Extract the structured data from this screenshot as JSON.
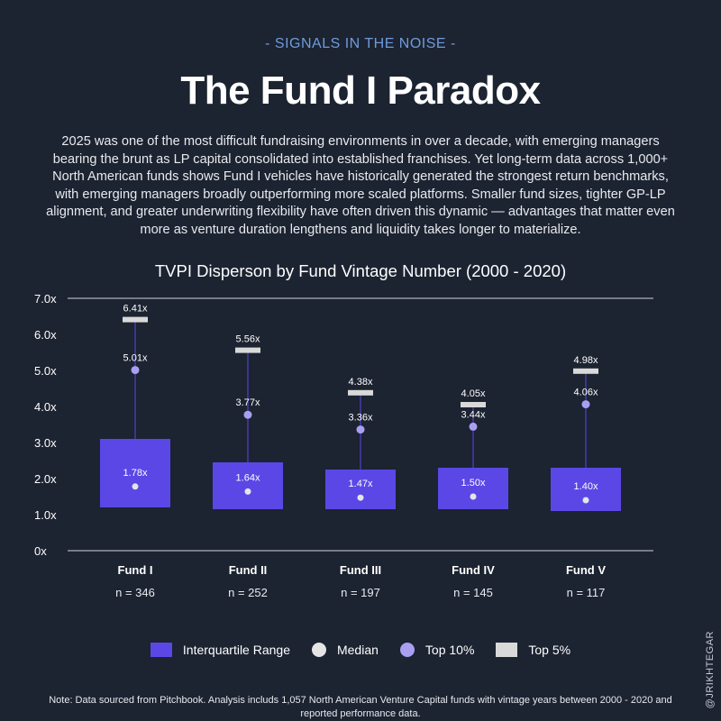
{
  "header": {
    "kicker": "- SIGNALS IN THE NOISE -",
    "title": "The Fund I Paradox",
    "intro": "2025 was one of the most difficult fundraising environments in over a decade, with emerging managers bearing the brunt as LP capital consolidated into established franchises. Yet long-term data across 1,000+ North American funds shows Fund I vehicles have historically generated the strongest return benchmarks, with emerging managers broadly outperforming more scaled platforms. Smaller fund sizes, tighter GP-LP alignment, and greater underwriting flexibility have often driven this dynamic — advantages that matter even more as venture duration lengthens and liquidity takes longer to materialize."
  },
  "chart_data": {
    "type": "box",
    "title": "TVPI Disperson by Fund Vintage Number (2000 - 2020)",
    "ylim": [
      0,
      7
    ],
    "yticks": [
      {
        "v": 0,
        "label": "0x"
      },
      {
        "v": 1,
        "label": "1.0x"
      },
      {
        "v": 2,
        "label": "2.0x"
      },
      {
        "v": 3,
        "label": "3.0x"
      },
      {
        "v": 4,
        "label": "4.0x"
      },
      {
        "v": 5,
        "label": "5.0x"
      },
      {
        "v": 6,
        "label": "6.0x"
      },
      {
        "v": 7,
        "label": "7.0x"
      }
    ],
    "categories": [
      "Fund I",
      "Fund II",
      "Fund III",
      "Fund IV",
      "Fund V"
    ],
    "counts": [
      "n = 346",
      "n = 252",
      "n = 197",
      "n = 145",
      "n = 117"
    ],
    "series": [
      {
        "name": "Interquartile Range",
        "q1": [
          1.2,
          1.15,
          1.15,
          1.15,
          1.1
        ],
        "q3": [
          3.1,
          2.45,
          2.25,
          2.3,
          2.3
        ]
      },
      {
        "name": "Median",
        "values": [
          1.78,
          1.64,
          1.47,
          1.5,
          1.4
        ],
        "labels": [
          "1.78x",
          "1.64x",
          "1.47x",
          "1.50x",
          "1.40x"
        ]
      },
      {
        "name": "Top 10%",
        "values": [
          5.01,
          3.77,
          3.36,
          3.44,
          4.06
        ],
        "labels": [
          "5.01x",
          "3.77x",
          "3.36x",
          "3.44x",
          "4.06x"
        ]
      },
      {
        "name": "Top 5%",
        "values": [
          6.41,
          5.56,
          4.38,
          4.05,
          4.98
        ],
        "labels": [
          "6.41x",
          "5.56x",
          "4.38x",
          "4.05x",
          "4.98x"
        ]
      }
    ],
    "colors": {
      "iqr": "#5b47e6",
      "median": "#e5e5e5",
      "top10": "#a99ff2",
      "top5": "#d9d9d9",
      "whisker": "#5b47e6",
      "grid": "#cfd3da"
    }
  },
  "legend": {
    "iqr": "Interquartile Range",
    "median": "Median",
    "top10": "Top 10%",
    "top5": "Top 5%"
  },
  "credit": "@JRIKHTEGAR",
  "note": "Note: Data sourced from Pitchbook. Analysis includs 1,057 North American Venture Capital funds with vintage years between 2000 - 2020 and reported performance data."
}
